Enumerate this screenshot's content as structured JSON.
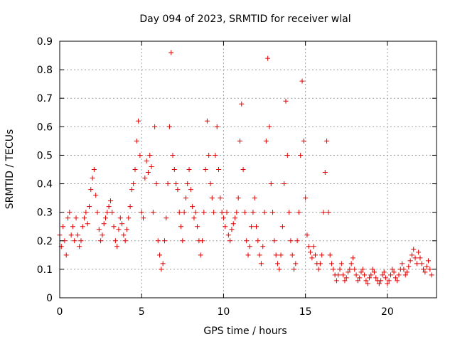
{
  "chart_data": {
    "type": "scatter",
    "title": "Day 094 of 2023, SRMTID for receiver wlal",
    "xlabel": "GPS time / hours",
    "ylabel": "SRMTID / TECUs",
    "xlim": [
      0,
      23
    ],
    "ylim": [
      0,
      0.9
    ],
    "xticks": [
      0,
      5,
      10,
      15,
      20
    ],
    "xtick_labels": [
      "0",
      "5",
      "10",
      "15",
      "20"
    ],
    "yticks": [
      0,
      0.1,
      0.2,
      0.3,
      0.4,
      0.5,
      0.6,
      0.7,
      0.8,
      0.9
    ],
    "ytick_labels": [
      "0",
      "0.1",
      "0.2",
      "0.3",
      "0.4",
      "0.5",
      "0.6",
      "0.7",
      "0.8",
      "0.9"
    ],
    "grid": true,
    "marker": "plus",
    "color": "#e00000",
    "series": [
      {
        "name": "SRMTID",
        "points": [
          [
            0.0,
            0.22
          ],
          [
            0.1,
            0.18
          ],
          [
            0.2,
            0.25
          ],
          [
            0.3,
            0.2
          ],
          [
            0.4,
            0.15
          ],
          [
            0.5,
            0.28
          ],
          [
            0.6,
            0.3
          ],
          [
            0.7,
            0.22
          ],
          [
            0.8,
            0.25
          ],
          [
            0.9,
            0.2
          ],
          [
            1.0,
            0.28
          ],
          [
            1.1,
            0.22
          ],
          [
            1.2,
            0.18
          ],
          [
            1.3,
            0.2
          ],
          [
            1.4,
            0.25
          ],
          [
            1.5,
            0.28
          ],
          [
            1.6,
            0.3
          ],
          [
            1.7,
            0.26
          ],
          [
            1.8,
            0.32
          ],
          [
            1.9,
            0.38
          ],
          [
            2.0,
            0.42
          ],
          [
            2.1,
            0.45
          ],
          [
            2.2,
            0.36
          ],
          [
            2.3,
            0.3
          ],
          [
            2.4,
            0.24
          ],
          [
            2.5,
            0.2
          ],
          [
            2.6,
            0.22
          ],
          [
            2.7,
            0.26
          ],
          [
            2.8,
            0.28
          ],
          [
            2.9,
            0.3
          ],
          [
            3.0,
            0.32
          ],
          [
            3.1,
            0.34
          ],
          [
            3.2,
            0.3
          ],
          [
            3.3,
            0.25
          ],
          [
            3.4,
            0.2
          ],
          [
            3.5,
            0.18
          ],
          [
            3.6,
            0.24
          ],
          [
            3.7,
            0.28
          ],
          [
            3.8,
            0.26
          ],
          [
            3.9,
            0.22
          ],
          [
            4.0,
            0.2
          ],
          [
            4.1,
            0.24
          ],
          [
            4.2,
            0.28
          ],
          [
            4.3,
            0.32
          ],
          [
            4.4,
            0.38
          ],
          [
            4.5,
            0.4
          ],
          [
            4.6,
            0.45
          ],
          [
            4.7,
            0.55
          ],
          [
            4.8,
            0.62
          ],
          [
            4.9,
            0.5
          ],
          [
            5.0,
            0.3
          ],
          [
            5.1,
            0.28
          ],
          [
            5.2,
            0.42
          ],
          [
            5.3,
            0.48
          ],
          [
            5.4,
            0.44
          ],
          [
            5.5,
            0.5
          ],
          [
            5.6,
            0.46
          ],
          [
            5.7,
            0.3
          ],
          [
            5.8,
            0.6
          ],
          [
            5.9,
            0.4
          ],
          [
            6.0,
            0.2
          ],
          [
            6.1,
            0.15
          ],
          [
            6.2,
            0.1
          ],
          [
            6.3,
            0.12
          ],
          [
            6.4,
            0.2
          ],
          [
            6.5,
            0.28
          ],
          [
            6.6,
            0.4
          ],
          [
            6.7,
            0.6
          ],
          [
            6.8,
            0.86
          ],
          [
            6.9,
            0.5
          ],
          [
            7.0,
            0.45
          ],
          [
            7.1,
            0.4
          ],
          [
            7.2,
            0.38
          ],
          [
            7.3,
            0.3
          ],
          [
            7.4,
            0.25
          ],
          [
            7.5,
            0.2
          ],
          [
            7.6,
            0.3
          ],
          [
            7.7,
            0.35
          ],
          [
            7.8,
            0.4
          ],
          [
            7.9,
            0.45
          ],
          [
            8.0,
            0.38
          ],
          [
            8.1,
            0.32
          ],
          [
            8.2,
            0.28
          ],
          [
            8.3,
            0.3
          ],
          [
            8.4,
            0.25
          ],
          [
            8.5,
            0.2
          ],
          [
            8.6,
            0.15
          ],
          [
            8.7,
            0.2
          ],
          [
            8.8,
            0.3
          ],
          [
            8.9,
            0.45
          ],
          [
            9.0,
            0.62
          ],
          [
            9.1,
            0.5
          ],
          [
            9.2,
            0.4
          ],
          [
            9.3,
            0.35
          ],
          [
            9.4,
            0.3
          ],
          [
            9.5,
            0.5
          ],
          [
            9.6,
            0.6
          ],
          [
            9.7,
            0.45
          ],
          [
            9.8,
            0.35
          ],
          [
            9.9,
            0.3
          ],
          [
            10.0,
            0.28
          ],
          [
            10.1,
            0.25
          ],
          [
            10.2,
            0.3
          ],
          [
            10.3,
            0.22
          ],
          [
            10.4,
            0.2
          ],
          [
            10.5,
            0.24
          ],
          [
            10.6,
            0.26
          ],
          [
            10.7,
            0.28
          ],
          [
            10.8,
            0.3
          ],
          [
            10.9,
            0.35
          ],
          [
            11.0,
            0.55
          ],
          [
            11.1,
            0.68
          ],
          [
            11.2,
            0.45
          ],
          [
            11.3,
            0.3
          ],
          [
            11.4,
            0.2
          ],
          [
            11.5,
            0.15
          ],
          [
            11.6,
            0.18
          ],
          [
            11.7,
            0.25
          ],
          [
            11.8,
            0.3
          ],
          [
            11.9,
            0.35
          ],
          [
            12.0,
            0.25
          ],
          [
            12.1,
            0.2
          ],
          [
            12.2,
            0.15
          ],
          [
            12.3,
            0.12
          ],
          [
            12.4,
            0.18
          ],
          [
            12.5,
            0.3
          ],
          [
            12.6,
            0.55
          ],
          [
            12.7,
            0.84
          ],
          [
            12.8,
            0.6
          ],
          [
            12.9,
            0.4
          ],
          [
            13.0,
            0.3
          ],
          [
            13.1,
            0.2
          ],
          [
            13.2,
            0.15
          ],
          [
            13.3,
            0.12
          ],
          [
            13.4,
            0.1
          ],
          [
            13.5,
            0.15
          ],
          [
            13.6,
            0.25
          ],
          [
            13.7,
            0.4
          ],
          [
            13.8,
            0.69
          ],
          [
            13.9,
            0.5
          ],
          [
            14.0,
            0.3
          ],
          [
            14.1,
            0.2
          ],
          [
            14.2,
            0.15
          ],
          [
            14.3,
            0.1
          ],
          [
            14.4,
            0.12
          ],
          [
            14.5,
            0.2
          ],
          [
            14.6,
            0.3
          ],
          [
            14.7,
            0.5
          ],
          [
            14.8,
            0.76
          ],
          [
            14.9,
            0.55
          ],
          [
            15.0,
            0.35
          ],
          [
            15.1,
            0.22
          ],
          [
            15.2,
            0.18
          ],
          [
            15.3,
            0.16
          ],
          [
            15.4,
            0.14
          ],
          [
            15.5,
            0.18
          ],
          [
            15.6,
            0.15
          ],
          [
            15.7,
            0.12
          ],
          [
            15.8,
            0.1
          ],
          [
            15.9,
            0.12
          ],
          [
            16.0,
            0.15
          ],
          [
            16.1,
            0.3
          ],
          [
            16.2,
            0.44
          ],
          [
            16.3,
            0.55
          ],
          [
            16.4,
            0.3
          ],
          [
            16.5,
            0.15
          ],
          [
            16.6,
            0.12
          ],
          [
            16.7,
            0.1
          ],
          [
            16.8,
            0.08
          ],
          [
            16.9,
            0.06
          ],
          [
            17.0,
            0.08
          ],
          [
            17.1,
            0.1
          ],
          [
            17.2,
            0.12
          ],
          [
            17.3,
            0.08
          ],
          [
            17.4,
            0.06
          ],
          [
            17.5,
            0.07
          ],
          [
            17.6,
            0.09
          ],
          [
            17.7,
            0.1
          ],
          [
            17.8,
            0.12
          ],
          [
            17.9,
            0.14
          ],
          [
            18.0,
            0.1
          ],
          [
            18.1,
            0.08
          ],
          [
            18.2,
            0.06
          ],
          [
            18.3,
            0.07
          ],
          [
            18.4,
            0.09
          ],
          [
            18.5,
            0.1
          ],
          [
            18.6,
            0.08
          ],
          [
            18.7,
            0.06
          ],
          [
            18.8,
            0.05
          ],
          [
            18.9,
            0.07
          ],
          [
            19.0,
            0.08
          ],
          [
            19.1,
            0.1
          ],
          [
            19.2,
            0.09
          ],
          [
            19.3,
            0.07
          ],
          [
            19.4,
            0.06
          ],
          [
            19.5,
            0.05
          ],
          [
            19.6,
            0.06
          ],
          [
            19.7,
            0.08
          ],
          [
            19.8,
            0.09
          ],
          [
            19.9,
            0.07
          ],
          [
            20.0,
            0.05
          ],
          [
            20.1,
            0.06
          ],
          [
            20.2,
            0.08
          ],
          [
            20.3,
            0.1
          ],
          [
            20.4,
            0.09
          ],
          [
            20.5,
            0.07
          ],
          [
            20.6,
            0.06
          ],
          [
            20.7,
            0.08
          ],
          [
            20.8,
            0.1
          ],
          [
            20.9,
            0.12
          ],
          [
            21.0,
            0.1
          ],
          [
            21.1,
            0.08
          ],
          [
            21.2,
            0.09
          ],
          [
            21.3,
            0.11
          ],
          [
            21.4,
            0.13
          ],
          [
            21.5,
            0.15
          ],
          [
            21.6,
            0.17
          ],
          [
            21.7,
            0.14
          ],
          [
            21.8,
            0.12
          ],
          [
            21.9,
            0.16
          ],
          [
            22.0,
            0.14
          ],
          [
            22.1,
            0.12
          ],
          [
            22.2,
            0.1
          ],
          [
            22.3,
            0.09
          ],
          [
            22.4,
            0.11
          ],
          [
            22.5,
            0.13
          ],
          [
            22.6,
            0.1
          ],
          [
            22.7,
            0.08
          ]
        ]
      }
    ]
  }
}
